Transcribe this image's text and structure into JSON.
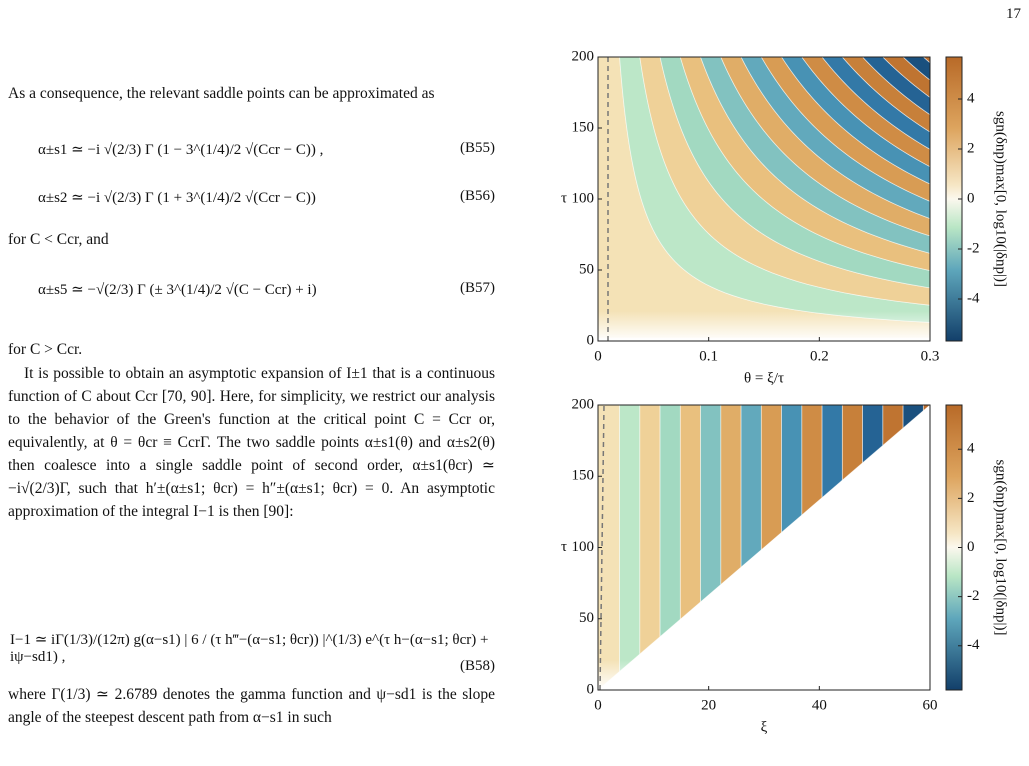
{
  "page_number": "17",
  "paragraphs": [
    "As a consequence, the relevant saddle points can be approximated as",
    "for C < Ccr, and",
    "for C > Ccr.",
    "It is possible to obtain an asymptotic expansion of I±1 that is a continuous function of C about Ccr [70, 90]. Here, for simplicity, we restrict our analysis to the behavior of the Green's function at the critical point C = Ccr or, equivalently, at θ = θcr ≡ CcrΓ. The two saddle points α±s1(θ) and α±s2(θ) then coalesce into a single saddle point of second order, α±s1(θcr) ≃ −i√(2/3)Γ, such that h′±(α±s1; θcr) = h″±(α±s1; θcr) = 0. An asymptotic approximation of the integral I−1 is then [90]:",
    "where Γ(1/3) ≃ 2.6789 denotes the gamma function and ψ−sd1 is the slope angle of the steepest descent path from α−s1 in such"
  ],
  "equations": [
    {
      "text": "α±s1 ≃ −i √(2/3) Γ (1 − 3^(1/4)/2 √(Ccr − C)) ,",
      "label": "(B55)"
    },
    {
      "text": "α±s2 ≃ −i √(2/3) Γ (1 + 3^(1/4)/2 √(Ccr − C))",
      "label": "(B56)"
    },
    {
      "text": "α±s5 ≃ −√(2/3) Γ (± 3^(1/4)/2 √(C − Ccr) + i)",
      "label": "(B57)"
    },
    {
      "text": "I−1 ≃ iΓ(1/3)/(12π) g(α−s1) | 6 / (τ h‴−(α−s1; θcr)) |^(1/3) e^(τ h−(α−s1; θcr) + iψ−sd1) ,",
      "label": "(B58)"
    }
  ],
  "figures": [
    {
      "xlabel": "θ = ξ/τ",
      "ylabel": "τ",
      "colorbar_label": "sgn(δnp)max[0, log10(|δnp|)]",
      "xlim": [
        0,
        0.3
      ],
      "xticks": [
        0,
        0.1,
        0.2,
        0.3
      ],
      "ylim": [
        0,
        200
      ],
      "yticks": [
        0,
        50,
        100,
        150,
        200
      ],
      "clim": [
        -5.68,
        5.68
      ],
      "cticks": [
        -4,
        -2,
        0,
        2,
        4
      ]
    },
    {
      "xlabel": "ξ",
      "ylabel": "τ",
      "colorbar_label": "sgn(δnp)max[0, log10(|δnp|)]",
      "xlim": [
        0,
        60
      ],
      "xticks": [
        0,
        20,
        40,
        60
      ],
      "ylim": [
        0,
        200
      ],
      "yticks": [
        0,
        50,
        100,
        150,
        200
      ],
      "clim": [
        -5.8,
        5.8
      ],
      "cticks": [
        -4,
        -2,
        0,
        2,
        4
      ]
    }
  ]
}
